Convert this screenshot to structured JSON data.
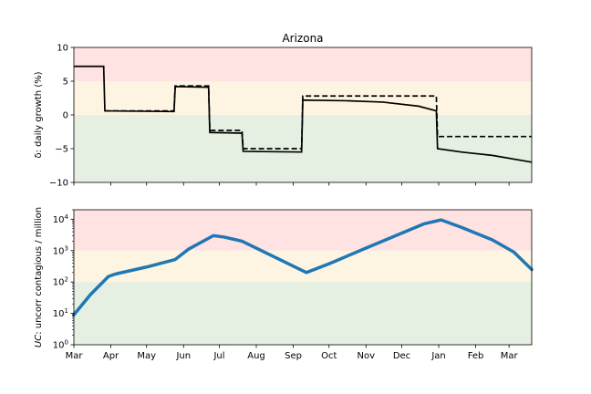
{
  "colors": {
    "red_band": "#ffe2e2",
    "yellow_band": "#fdf5e2",
    "green_band": "#e5f0e2",
    "top_line": "#000000",
    "bottom_line": "#1f77b4"
  },
  "chart_data": [
    {
      "type": "line",
      "title": "Arizona",
      "ylabel": "δ: daily growth (%)",
      "x_axis": "months from 2020-03-01 to 2021-03-20",
      "xlim": [
        "2020-03-01",
        "2021-03-20"
      ],
      "ylim": [
        -10,
        10
      ],
      "yticks": [
        -10,
        -5,
        0,
        5,
        10
      ],
      "bands": [
        {
          "from": 5,
          "to": 10,
          "color": "red"
        },
        {
          "from": 0,
          "to": 5,
          "color": "yellow"
        },
        {
          "from": -10,
          "to": 0,
          "color": "green"
        }
      ],
      "series": [
        {
          "style": "solid",
          "points": [
            [
              "2020-03-01",
              7.2
            ],
            [
              "2020-03-26",
              7.2
            ],
            [
              "2020-03-27",
              0.6
            ],
            [
              "2020-05-24",
              0.5
            ],
            [
              "2020-05-25",
              4.2
            ],
            [
              "2020-06-22",
              4.1
            ],
            [
              "2020-06-23",
              -2.6
            ],
            [
              "2020-07-20",
              -2.7
            ],
            [
              "2020-07-21",
              -5.4
            ],
            [
              "2020-09-08",
              -5.5
            ],
            [
              "2020-09-09",
              2.2
            ],
            [
              "2020-10-15",
              2.1
            ],
            [
              "2020-11-15",
              1.9
            ],
            [
              "2020-12-15",
              1.3
            ],
            [
              "2020-12-30",
              0.6
            ],
            [
              "2020-12-31",
              -5.0
            ],
            [
              "2021-01-20",
              -5.5
            ],
            [
              "2021-02-15",
              -6.0
            ],
            [
              "2021-03-20",
              -7.0
            ]
          ]
        },
        {
          "style": "dashed",
          "points": [
            [
              "2020-03-27",
              0.6
            ],
            [
              "2020-05-24",
              0.6
            ],
            [
              "2020-05-25",
              4.3
            ],
            [
              "2020-06-22",
              4.3
            ],
            [
              "2020-06-23",
              -2.3
            ],
            [
              "2020-07-20",
              -2.3
            ],
            [
              "2020-07-21",
              -5.0
            ],
            [
              "2020-09-08",
              -5.0
            ],
            [
              "2020-09-09",
              2.8
            ],
            [
              "2020-12-30",
              2.8
            ],
            [
              "2020-12-31",
              -3.2
            ],
            [
              "2021-03-20",
              -3.2
            ]
          ]
        }
      ]
    },
    {
      "type": "line",
      "ylabel": "UC: uncorr contagious / million",
      "ylabel_italic": "UC",
      "ylabel_rest": ": uncorr contagious / million",
      "yscale": "log",
      "ylim": [
        1,
        20000
      ],
      "yticks": [
        {
          "value": 1,
          "base": "10",
          "exp": "0"
        },
        {
          "value": 10,
          "base": "10",
          "exp": "1"
        },
        {
          "value": 100,
          "base": "10",
          "exp": "2"
        },
        {
          "value": 1000,
          "base": "10",
          "exp": "3"
        },
        {
          "value": 10000,
          "base": "10",
          "exp": "4"
        }
      ],
      "bands": [
        {
          "from": 1000,
          "to": 20000,
          "color": "red"
        },
        {
          "from": 100,
          "to": 1000,
          "color": "yellow"
        },
        {
          "from": 1,
          "to": 100,
          "color": "green"
        }
      ],
      "xticks": [
        {
          "date": "2020-03-01",
          "label": "Mar"
        },
        {
          "date": "2020-04-01",
          "label": "Apr"
        },
        {
          "date": "2020-05-01",
          "label": "May"
        },
        {
          "date": "2020-06-01",
          "label": "Jun"
        },
        {
          "date": "2020-07-01",
          "label": "Jul"
        },
        {
          "date": "2020-08-01",
          "label": "Aug"
        },
        {
          "date": "2020-09-01",
          "label": "Sep"
        },
        {
          "date": "2020-10-01",
          "label": "Oct"
        },
        {
          "date": "2020-11-01",
          "label": "Nov"
        },
        {
          "date": "2020-12-01",
          "label": "Dec"
        },
        {
          "date": "2021-01-01",
          "label": "Jan"
        },
        {
          "date": "2021-02-01",
          "label": "Feb"
        },
        {
          "date": "2021-03-01",
          "label": "Mar"
        }
      ],
      "series": [
        {
          "points": [
            [
              "2020-03-01",
              9
            ],
            [
              "2020-03-15",
              40
            ],
            [
              "2020-03-30",
              150
            ],
            [
              "2020-04-05",
              180
            ],
            [
              "2020-05-01",
              300
            ],
            [
              "2020-05-25",
              520
            ],
            [
              "2020-06-05",
              1100
            ],
            [
              "2020-06-26",
              3000
            ],
            [
              "2020-07-05",
              2700
            ],
            [
              "2020-07-20",
              2000
            ],
            [
              "2020-09-12",
              200
            ],
            [
              "2020-10-01",
              380
            ],
            [
              "2020-11-01",
              1200
            ],
            [
              "2020-12-01",
              3600
            ],
            [
              "2020-12-20",
              7200
            ],
            [
              "2021-01-03",
              9500
            ],
            [
              "2021-01-20",
              5500
            ],
            [
              "2021-02-15",
              2200
            ],
            [
              "2021-03-05",
              900
            ],
            [
              "2021-03-20",
              250
            ]
          ]
        }
      ]
    }
  ]
}
